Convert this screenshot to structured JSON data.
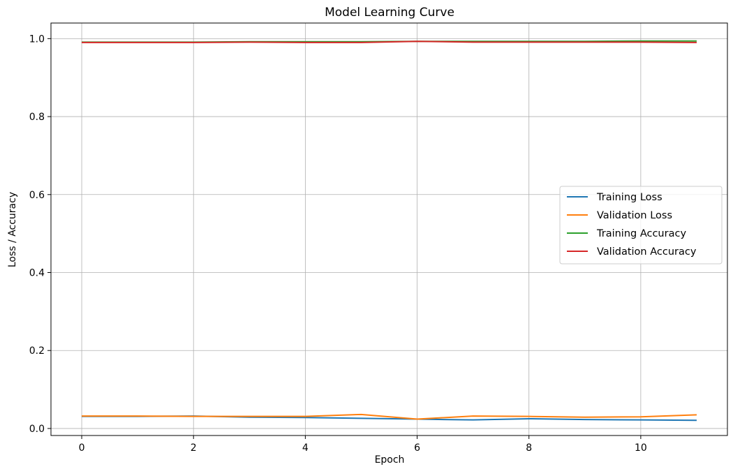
{
  "chart_data": {
    "type": "line",
    "title": "Model Learning Curve",
    "xlabel": "Epoch",
    "ylabel": "Loss / Accuracy",
    "xlim": [
      -0.55,
      11.55
    ],
    "ylim": [
      -0.018,
      1.04
    ],
    "xticks": [
      0,
      2,
      4,
      6,
      8,
      10
    ],
    "xtick_labels": [
      "0",
      "2",
      "4",
      "6",
      "8",
      "10"
    ],
    "yticks": [
      0.0,
      0.2,
      0.4,
      0.6,
      0.8,
      1.0
    ],
    "ytick_labels": [
      "0.0",
      "0.2",
      "0.4",
      "0.6",
      "0.8",
      "1.0"
    ],
    "grid": true,
    "legend_position": "center-right",
    "x": [
      0,
      1,
      2,
      3,
      4,
      5,
      6,
      7,
      8,
      9,
      10,
      11
    ],
    "series": [
      {
        "name": "Training Loss",
        "color": "#1f77b4",
        "values": [
          0.031,
          0.031,
          0.032,
          0.029,
          0.028,
          0.026,
          0.024,
          0.022,
          0.025,
          0.023,
          0.022,
          0.021
        ]
      },
      {
        "name": "Validation Loss",
        "color": "#ff7f0e",
        "values": [
          0.032,
          0.032,
          0.031,
          0.031,
          0.031,
          0.036,
          0.024,
          0.032,
          0.031,
          0.029,
          0.03,
          0.035
        ]
      },
      {
        "name": "Training Accuracy",
        "color": "#2ca02c",
        "values": [
          0.991,
          0.991,
          0.991,
          0.992,
          0.992,
          0.992,
          0.993,
          0.993,
          0.993,
          0.993,
          0.994,
          0.994
        ]
      },
      {
        "name": "Validation Accuracy",
        "color": "#d62728",
        "values": [
          0.99,
          0.99,
          0.99,
          0.991,
          0.99,
          0.99,
          0.993,
          0.991,
          0.991,
          0.991,
          0.991,
          0.99
        ]
      }
    ]
  }
}
